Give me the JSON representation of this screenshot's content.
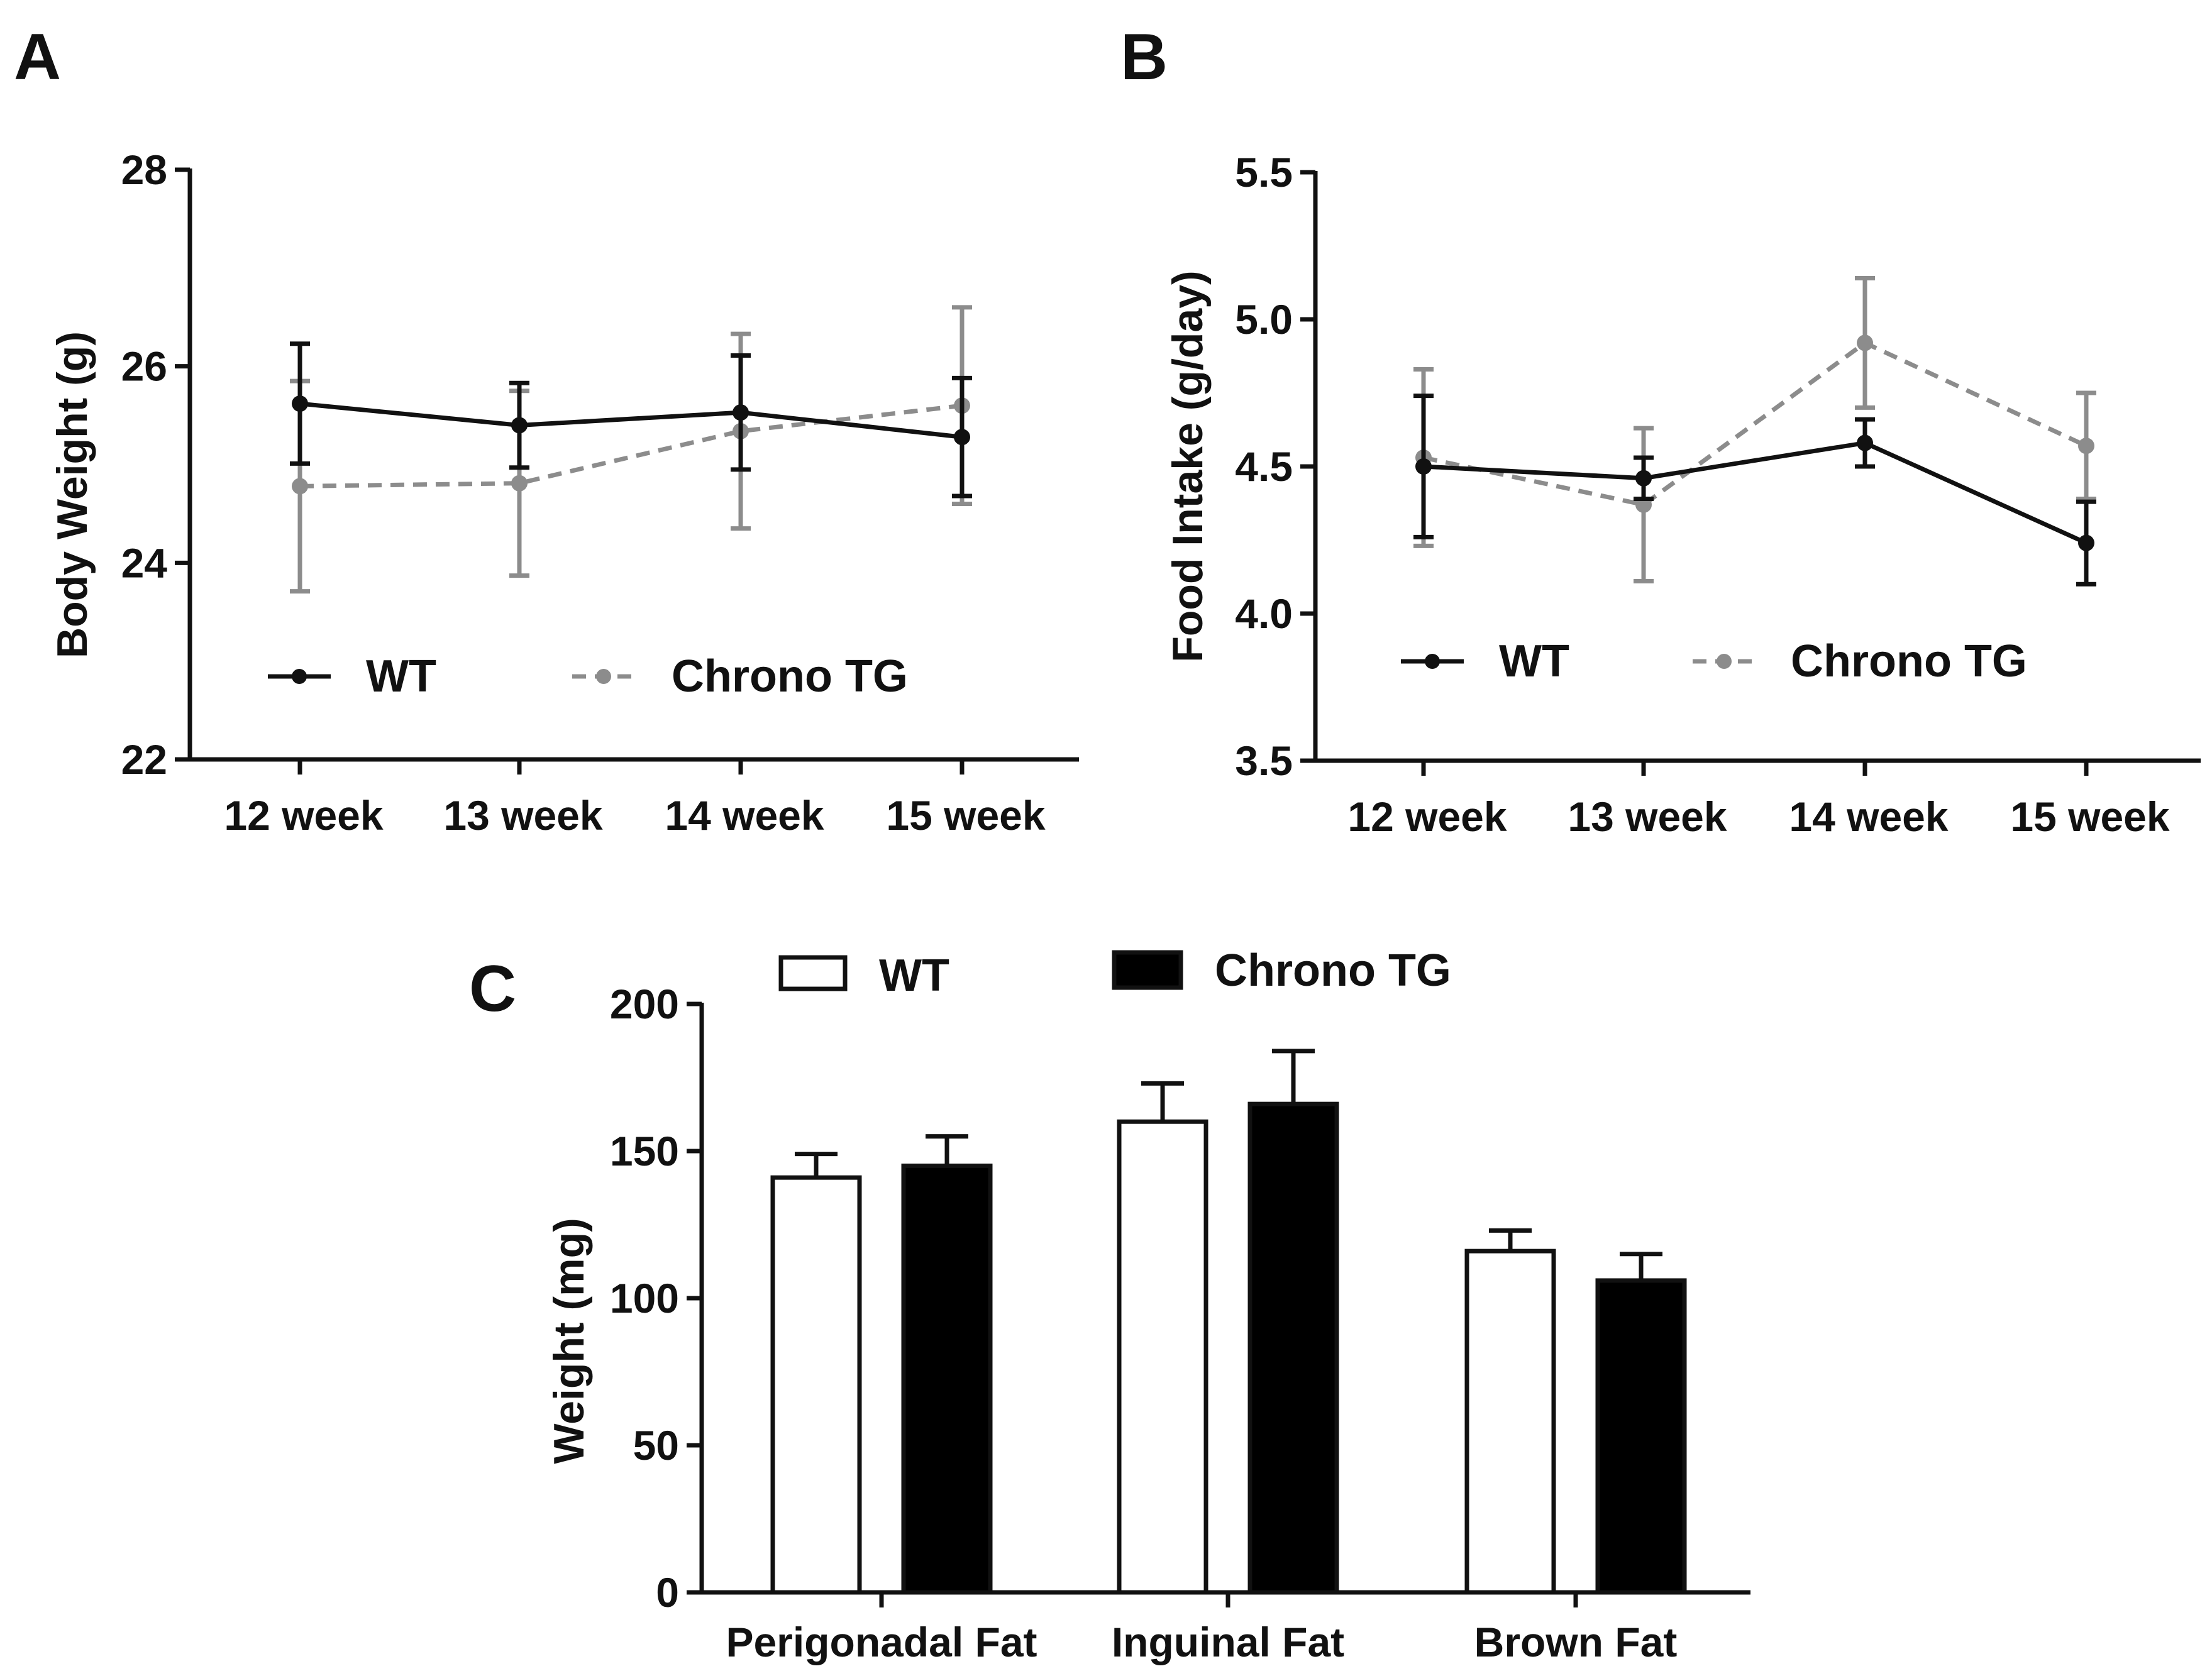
{
  "colors": {
    "wt_line": "#111111",
    "tg_line": "#8c8c8c",
    "bar_wt_fill": "#ffffff",
    "bar_tg_fill": "#000000",
    "axis": "#111111"
  },
  "chart_data": [
    {
      "panel": "A",
      "type": "line",
      "ylabel": "Body Weight (g)",
      "xlabel": "",
      "ylim": [
        22,
        28
      ],
      "yticks": [
        "22",
        "24",
        "26",
        "28"
      ],
      "categories": [
        "12 week",
        "13 week",
        "14 week",
        "15 week"
      ],
      "legend": {
        "position": "bottom-inside",
        "labels": [
          "WT",
          "Chrono TG"
        ]
      },
      "series": [
        {
          "name": "WT",
          "style": "solid",
          "values": [
            25.62,
            25.4,
            25.53,
            25.28
          ],
          "errors": [
            0.61,
            0.43,
            0.58,
            0.6
          ]
        },
        {
          "name": "Chrono TG",
          "style": "dashed",
          "values": [
            24.78,
            24.81,
            25.34,
            25.6
          ],
          "errors": [
            1.07,
            0.94,
            0.99,
            1.0
          ]
        }
      ]
    },
    {
      "panel": "B",
      "type": "line",
      "ylabel": "Food Intake (g/day)",
      "xlabel": "",
      "ylim": [
        3.5,
        5.5
      ],
      "yticks": [
        "3.5",
        "4.0",
        "4.5",
        "5.0",
        "5.5"
      ],
      "categories": [
        "12 week",
        "13 week",
        "14 week",
        "15 week"
      ],
      "legend": {
        "position": "bottom-inside",
        "labels": [
          "WT",
          "Chrono TG"
        ]
      },
      "series": [
        {
          "name": "WT",
          "style": "solid",
          "values": [
            4.5,
            4.46,
            4.58,
            4.24
          ],
          "errors": [
            0.24,
            0.07,
            0.08,
            0.14
          ]
        },
        {
          "name": "Chrono TG",
          "style": "dashed",
          "values": [
            4.53,
            4.37,
            4.92,
            4.57
          ],
          "errors": [
            0.3,
            0.26,
            0.22,
            0.18
          ]
        }
      ]
    },
    {
      "panel": "C",
      "type": "bar",
      "ylabel": "Weight (mg)",
      "xlabel": "",
      "ylim": [
        0,
        200
      ],
      "yticks": [
        "0",
        "50",
        "100",
        "150",
        "200"
      ],
      "categories": [
        "Perigonadal Fat",
        "Inguinal Fat",
        "Brown Fat"
      ],
      "legend": {
        "position": "top",
        "labels": [
          "WT",
          "Chrono TG"
        ]
      },
      "series": [
        {
          "name": "WT",
          "values": [
            141,
            160,
            116
          ],
          "errors": [
            8,
            13,
            7
          ]
        },
        {
          "name": "Chrono TG",
          "values": [
            145,
            166,
            106
          ],
          "errors": [
            10,
            18,
            9
          ]
        }
      ]
    }
  ]
}
